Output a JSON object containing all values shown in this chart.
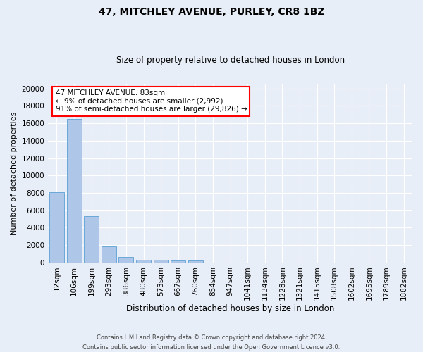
{
  "title": "47, MITCHLEY AVENUE, PURLEY, CR8 1BZ",
  "subtitle": "Size of property relative to detached houses in London",
  "xlabel": "Distribution of detached houses by size in London",
  "ylabel": "Number of detached properties",
  "categories": [
    "12sqm",
    "106sqm",
    "199sqm",
    "293sqm",
    "386sqm",
    "480sqm",
    "573sqm",
    "667sqm",
    "760sqm",
    "854sqm",
    "947sqm",
    "1041sqm",
    "1134sqm",
    "1228sqm",
    "1321sqm",
    "1415sqm",
    "1508sqm",
    "1602sqm",
    "1695sqm",
    "1789sqm",
    "1882sqm"
  ],
  "values": [
    8100,
    16500,
    5300,
    1850,
    650,
    350,
    280,
    220,
    200,
    0,
    0,
    0,
    0,
    0,
    0,
    0,
    0,
    0,
    0,
    0,
    0
  ],
  "bar_color": "#aec6e8",
  "bar_edge_color": "#5a9fd4",
  "annotation_text": "47 MITCHLEY AVENUE: 83sqm\n← 9% of detached houses are smaller (2,992)\n91% of semi-detached houses are larger (29,826) →",
  "annotation_box_color": "white",
  "annotation_box_edge_color": "red",
  "ylim": [
    0,
    20500
  ],
  "yticks": [
    0,
    2000,
    4000,
    6000,
    8000,
    10000,
    12000,
    14000,
    16000,
    18000,
    20000
  ],
  "footer_line1": "Contains HM Land Registry data © Crown copyright and database right 2024.",
  "footer_line2": "Contains public sector information licensed under the Open Government Licence v3.0.",
  "background_color": "#e8eef7",
  "grid_color": "#ffffff"
}
